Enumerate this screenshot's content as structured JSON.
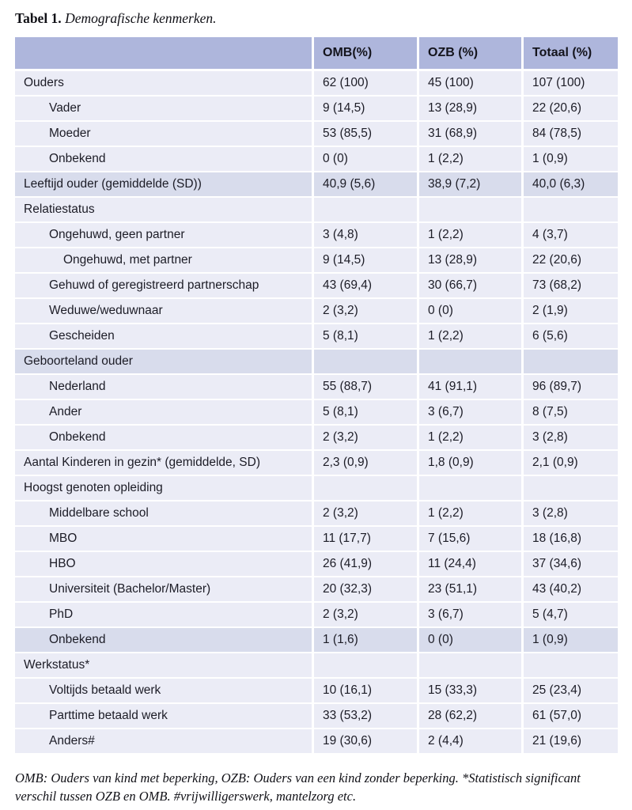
{
  "title": {
    "label": "Tabel 1.",
    "caption": "Demografische kenmerken."
  },
  "table": {
    "header": {
      "col0": "",
      "col1": "OMB(%)",
      "col2": "OZB (%)",
      "col3": "Totaal (%)"
    },
    "rows": [
      {
        "label": "Ouders",
        "indent": 0,
        "shaded": false,
        "values": [
          "62 (100)",
          "45 (100)",
          "107 (100)"
        ]
      },
      {
        "label": "Vader",
        "indent": 1,
        "shaded": false,
        "values": [
          "9 (14,5)",
          "13 (28,9)",
          "22 (20,6)"
        ]
      },
      {
        "label": "Moeder",
        "indent": 1,
        "shaded": false,
        "values": [
          "53 (85,5)",
          "31 (68,9)",
          "84 (78,5)"
        ]
      },
      {
        "label": "Onbekend",
        "indent": 1,
        "shaded": false,
        "values": [
          "0 (0)",
          "1 (2,2)",
          "1 (0,9)"
        ]
      },
      {
        "label": "Leeftijd ouder (gemiddelde (SD))",
        "indent": 0,
        "shaded": true,
        "values": [
          "40,9 (5,6)",
          "38,9 (7,2)",
          "40,0 (6,3)"
        ]
      },
      {
        "label": "Relatiestatus",
        "indent": 0,
        "shaded": false,
        "values": [
          "",
          "",
          ""
        ]
      },
      {
        "label": "Ongehuwd, geen partner",
        "indent": 1,
        "shaded": false,
        "values": [
          "3 (4,8)",
          "1 (2,2)",
          "4 (3,7)"
        ]
      },
      {
        "label": "Ongehuwd, met partner",
        "indent": 2,
        "shaded": false,
        "values": [
          "9 (14,5)",
          "13 (28,9)",
          "22 (20,6)"
        ]
      },
      {
        "label": "Gehuwd of geregistreerd partnerschap",
        "indent": 1,
        "shaded": false,
        "values": [
          "43 (69,4)",
          "30 (66,7)",
          "73 (68,2)"
        ]
      },
      {
        "label": "Weduwe/weduwnaar",
        "indent": 1,
        "shaded": false,
        "values": [
          "2 (3,2)",
          "0 (0)",
          "2 (1,9)"
        ]
      },
      {
        "label": "Gescheiden",
        "indent": 1,
        "shaded": false,
        "values": [
          "5 (8,1)",
          "1 (2,2)",
          "6 (5,6)"
        ]
      },
      {
        "label": "Geboorteland ouder",
        "indent": 0,
        "shaded": true,
        "values": [
          "",
          "",
          ""
        ]
      },
      {
        "label": "Nederland",
        "indent": 1,
        "shaded": false,
        "values": [
          "55 (88,7)",
          "41 (91,1)",
          "96 (89,7)"
        ]
      },
      {
        "label": "Ander",
        "indent": 1,
        "shaded": false,
        "values": [
          "5 (8,1)",
          "3 (6,7)",
          "8 (7,5)"
        ]
      },
      {
        "label": "Onbekend",
        "indent": 1,
        "shaded": false,
        "values": [
          "2 (3,2)",
          "1 (2,2)",
          "3 (2,8)"
        ]
      },
      {
        "label": "Aantal Kinderen in gezin* (gemiddelde, SD)",
        "indent": 0,
        "shaded": false,
        "values": [
          "2,3 (0,9)",
          "1,8 (0,9)",
          "2,1 (0,9)"
        ]
      },
      {
        "label": "Hoogst genoten opleiding",
        "indent": 0,
        "shaded": false,
        "values": [
          "",
          "",
          ""
        ]
      },
      {
        "label": "Middelbare school",
        "indent": 1,
        "shaded": false,
        "values": [
          "2 (3,2)",
          "1 (2,2)",
          "3 (2,8)"
        ]
      },
      {
        "label": "MBO",
        "indent": 1,
        "shaded": false,
        "values": [
          "11 (17,7)",
          "7 (15,6)",
          "18 (16,8)"
        ]
      },
      {
        "label": "HBO",
        "indent": 1,
        "shaded": false,
        "values": [
          "26 (41,9)",
          "11 (24,4)",
          "37 (34,6)"
        ]
      },
      {
        "label": "Universiteit (Bachelor/Master)",
        "indent": 1,
        "shaded": false,
        "values": [
          "20 (32,3)",
          "23 (51,1)",
          "43 (40,2)"
        ]
      },
      {
        "label": "PhD",
        "indent": 1,
        "shaded": false,
        "values": [
          "2 (3,2)",
          "3 (6,7)",
          "5 (4,7)"
        ]
      },
      {
        "label": "Onbekend",
        "indent": 1,
        "shaded": true,
        "values": [
          "1 (1,6)",
          "0 (0)",
          "1 (0,9)"
        ]
      },
      {
        "label": "Werkstatus*",
        "indent": 0,
        "shaded": false,
        "values": [
          "",
          "",
          ""
        ]
      },
      {
        "label": "Voltijds betaald werk",
        "indent": 1,
        "shaded": false,
        "values": [
          "10 (16,1)",
          "15 (33,3)",
          "25 (23,4)"
        ]
      },
      {
        "label": "Parttime betaald werk",
        "indent": 1,
        "shaded": false,
        "values": [
          "33 (53,2)",
          "28 (62,2)",
          "61 (57,0)"
        ]
      },
      {
        "label": "Anders#",
        "indent": 1,
        "shaded": false,
        "values": [
          "19 (30,6)",
          "2 (4,4)",
          "21 (19,6)"
        ]
      }
    ]
  },
  "footnote": "OMB: Ouders van kind met beperking, OZB: Ouders van een kind zonder beperking. *Statistisch significant verschil tussen OZB en OMB. #vrijwilligerswerk, mantelzorg etc.",
  "colors": {
    "header_bg": "#aeb6dc",
    "row_bg": "#ebecf6",
    "row_shaded_bg": "#d8dcec",
    "text": "#1c1c26"
  }
}
